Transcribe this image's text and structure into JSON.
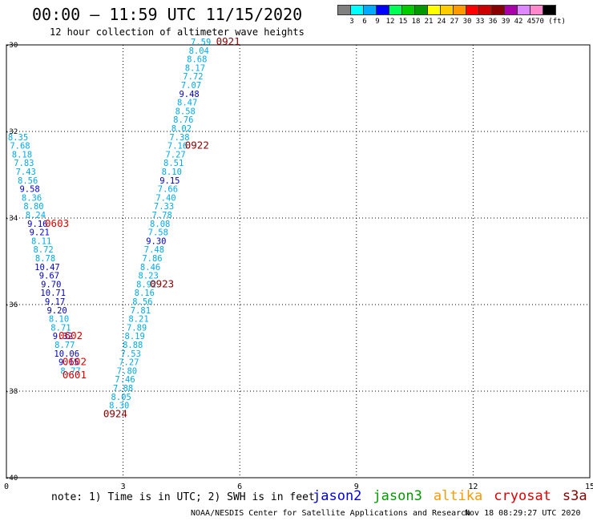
{
  "header": {
    "title": "00:00 – 11:59 UTC 11/15/2020",
    "subtitle": "12 hour collection of altimeter wave heights"
  },
  "legend": {
    "colors": [
      "#808080",
      "#00ffff",
      "#00aaff",
      "#0000ff",
      "#00ff55",
      "#00cc00",
      "#009900",
      "#ffff00",
      "#ffcc00",
      "#ff9900",
      "#ff0000",
      "#cc0000",
      "#880000",
      "#aa00aa",
      "#dd88ff",
      "#ff88cc",
      "#000000"
    ],
    "labels": [
      "3",
      "6",
      "9",
      "12",
      "15",
      "18",
      "21",
      "24",
      "27",
      "30",
      "33",
      "36",
      "39",
      "42",
      "45",
      "70 (ft)"
    ]
  },
  "footer": {
    "note": "note: 1) Time is in UTC; 2) SWH is in feet",
    "satellites": [
      {
        "name": "jason2",
        "color": "#0000dd"
      },
      {
        "name": "jason3",
        "color": "#009900"
      },
      {
        "name": "altika",
        "color": "#ff9900"
      },
      {
        "name": "cryosat",
        "color": "#dd0000"
      },
      {
        "name": "s3a",
        "color": "#880000"
      }
    ],
    "credit": "NOAA/NESDIS Center for Satellite Applications and Research",
    "timestamp": "Nov 18 08:29:27 UTC 2020"
  },
  "chart_data": {
    "type": "scatter",
    "xlim": [
      0,
      15
    ],
    "ylim": [
      -40,
      -30
    ],
    "xticks": [
      "0",
      "3",
      "6",
      "9",
      "12",
      "15"
    ],
    "yticks": [
      "-30",
      "-32",
      "-34",
      "-36",
      "-38",
      "-40"
    ],
    "grid": true,
    "points": [
      {
        "x": 5.0,
        "y": -30.0,
        "v": "7.59",
        "c": "#00aaee"
      },
      {
        "x": 4.95,
        "y": -30.2,
        "v": "8.04",
        "c": "#00aaee"
      },
      {
        "x": 4.9,
        "y": -30.4,
        "v": "8.68",
        "c": "#00aaee"
      },
      {
        "x": 4.85,
        "y": -30.6,
        "v": "8.17",
        "c": "#00aaee"
      },
      {
        "x": 4.8,
        "y": -30.8,
        "v": "7.72",
        "c": "#00aaee"
      },
      {
        "x": 4.75,
        "y": -31.0,
        "v": "7.07",
        "c": "#00aaee"
      },
      {
        "x": 4.7,
        "y": -31.2,
        "v": "9.48",
        "c": "#0000cc"
      },
      {
        "x": 4.65,
        "y": -31.4,
        "v": "8.47",
        "c": "#00aaee"
      },
      {
        "x": 4.6,
        "y": -31.6,
        "v": "8.58",
        "c": "#00aaee"
      },
      {
        "x": 4.55,
        "y": -31.8,
        "v": "8.76",
        "c": "#00aaee"
      },
      {
        "x": 4.5,
        "y": -32.0,
        "v": "8.02",
        "c": "#00aaee"
      },
      {
        "x": 4.45,
        "y": -32.2,
        "v": "7.38",
        "c": "#00aaee"
      },
      {
        "x": 4.4,
        "y": -32.4,
        "v": "7.16",
        "c": "#00aaee"
      },
      {
        "x": 4.35,
        "y": -32.6,
        "v": "7.27",
        "c": "#00aaee"
      },
      {
        "x": 4.3,
        "y": -32.8,
        "v": "8.51",
        "c": "#00aaee"
      },
      {
        "x": 4.25,
        "y": -33.0,
        "v": "8.10",
        "c": "#00aaee"
      },
      {
        "x": 4.2,
        "y": -33.2,
        "v": "9.15",
        "c": "#0000cc"
      },
      {
        "x": 4.15,
        "y": -33.4,
        "v": "7.66",
        "c": "#00aaee"
      },
      {
        "x": 4.1,
        "y": -33.6,
        "v": "7.40",
        "c": "#00aaee"
      },
      {
        "x": 4.05,
        "y": -33.8,
        "v": "7.33",
        "c": "#00aaee"
      },
      {
        "x": 4.0,
        "y": -34.0,
        "v": "7.78",
        "c": "#00aaee"
      },
      {
        "x": 3.95,
        "y": -34.2,
        "v": "8.08",
        "c": "#00aaee"
      },
      {
        "x": 3.9,
        "y": -34.4,
        "v": "7.58",
        "c": "#00aaee"
      },
      {
        "x": 3.85,
        "y": -34.6,
        "v": "9.30",
        "c": "#0000cc"
      },
      {
        "x": 3.8,
        "y": -34.8,
        "v": "7.48",
        "c": "#00aaee"
      },
      {
        "x": 3.75,
        "y": -35.0,
        "v": "7.86",
        "c": "#00aaee"
      },
      {
        "x": 3.7,
        "y": -35.2,
        "v": "8.46",
        "c": "#00aaee"
      },
      {
        "x": 3.65,
        "y": -35.4,
        "v": "8.23",
        "c": "#00aaee"
      },
      {
        "x": 3.6,
        "y": -35.6,
        "v": "8.92",
        "c": "#00aaee"
      },
      {
        "x": 3.55,
        "y": -35.8,
        "v": "8.16",
        "c": "#00aaee"
      },
      {
        "x": 3.5,
        "y": -36.0,
        "v": "8.56",
        "c": "#00aaee"
      },
      {
        "x": 3.45,
        "y": -36.2,
        "v": "7.81",
        "c": "#00aaee"
      },
      {
        "x": 3.4,
        "y": -36.4,
        "v": "8.21",
        "c": "#00aaee"
      },
      {
        "x": 3.35,
        "y": -36.6,
        "v": "7.89",
        "c": "#00aaee"
      },
      {
        "x": 3.3,
        "y": -36.8,
        "v": "8.19",
        "c": "#00aaee"
      },
      {
        "x": 3.25,
        "y": -37.0,
        "v": "8.88",
        "c": "#00aaee"
      },
      {
        "x": 3.2,
        "y": -37.2,
        "v": "7.53",
        "c": "#00aaee"
      },
      {
        "x": 3.15,
        "y": -37.4,
        "v": "7.27",
        "c": "#00aaee"
      },
      {
        "x": 3.1,
        "y": -37.6,
        "v": "7.80",
        "c": "#00aaee"
      },
      {
        "x": 3.05,
        "y": -37.8,
        "v": "7.46",
        "c": "#00aaee"
      },
      {
        "x": 3.0,
        "y": -38.0,
        "v": "7.88",
        "c": "#00aaee"
      },
      {
        "x": 2.95,
        "y": -38.2,
        "v": "8.05",
        "c": "#00aaee"
      },
      {
        "x": 2.9,
        "y": -38.4,
        "v": "8.30",
        "c": "#00aaee"
      },
      {
        "x": 0.3,
        "y": -32.2,
        "v": "8.35",
        "c": "#00aaee"
      },
      {
        "x": 0.35,
        "y": -32.4,
        "v": "7.68",
        "c": "#00aaee"
      },
      {
        "x": 0.4,
        "y": -32.6,
        "v": "8.18",
        "c": "#00aaee"
      },
      {
        "x": 0.45,
        "y": -32.8,
        "v": "7.83",
        "c": "#00aaee"
      },
      {
        "x": 0.5,
        "y": -33.0,
        "v": "7.43",
        "c": "#00aaee"
      },
      {
        "x": 0.55,
        "y": -33.2,
        "v": "8.56",
        "c": "#00aaee"
      },
      {
        "x": 0.6,
        "y": -33.4,
        "v": "9.58",
        "c": "#0000cc"
      },
      {
        "x": 0.65,
        "y": -33.6,
        "v": "8.36",
        "c": "#00aaee"
      },
      {
        "x": 0.7,
        "y": -33.8,
        "v": "8.80",
        "c": "#00aaee"
      },
      {
        "x": 0.75,
        "y": -34.0,
        "v": "8.24",
        "c": "#00aaee"
      },
      {
        "x": 0.8,
        "y": -34.2,
        "v": "9.16",
        "c": "#0000cc"
      },
      {
        "x": 0.85,
        "y": -34.4,
        "v": "9.21",
        "c": "#0000cc"
      },
      {
        "x": 0.9,
        "y": -34.6,
        "v": "8.11",
        "c": "#00aaee"
      },
      {
        "x": 0.95,
        "y": -34.8,
        "v": "8.72",
        "c": "#00aaee"
      },
      {
        "x": 1.0,
        "y": -35.0,
        "v": "8.78",
        "c": "#00aaee"
      },
      {
        "x": 1.05,
        "y": -35.2,
        "v": "10.47",
        "c": "#0000cc"
      },
      {
        "x": 1.1,
        "y": -35.4,
        "v": "9.67",
        "c": "#0000cc"
      },
      {
        "x": 1.15,
        "y": -35.6,
        "v": "9.70",
        "c": "#0000cc"
      },
      {
        "x": 1.2,
        "y": -35.8,
        "v": "10.71",
        "c": "#0000cc"
      },
      {
        "x": 1.25,
        "y": -36.0,
        "v": "9.17",
        "c": "#0000cc"
      },
      {
        "x": 1.3,
        "y": -36.2,
        "v": "9.20",
        "c": "#0000cc"
      },
      {
        "x": 1.35,
        "y": -36.4,
        "v": "8.10",
        "c": "#00aaee"
      },
      {
        "x": 1.4,
        "y": -36.6,
        "v": "8.71",
        "c": "#00aaee"
      },
      {
        "x": 1.45,
        "y": -36.8,
        "v": "9.32",
        "c": "#0000cc"
      },
      {
        "x": 1.5,
        "y": -37.0,
        "v": "8.77",
        "c": "#00aaee"
      },
      {
        "x": 1.55,
        "y": -37.2,
        "v": "10.06",
        "c": "#0000cc"
      },
      {
        "x": 1.6,
        "y": -37.4,
        "v": "9.15",
        "c": "#0000cc"
      },
      {
        "x": 1.65,
        "y": -37.6,
        "v": "8.77",
        "c": "#00aaee"
      }
    ],
    "passes": [
      {
        "label": "0921",
        "x": 5.7,
        "y": -30.0,
        "c": "#880000"
      },
      {
        "label": "0922",
        "x": 4.9,
        "y": -32.4,
        "c": "#880000"
      },
      {
        "label": "0923",
        "x": 4.0,
        "y": -35.6,
        "c": "#880000"
      },
      {
        "label": "0924",
        "x": 2.8,
        "y": -38.6,
        "c": "#880000"
      },
      {
        "label": "0603",
        "x": 1.3,
        "y": -34.2,
        "c": "#dd0000"
      },
      {
        "label": "0602",
        "x": 1.65,
        "y": -36.8,
        "c": "#dd0000"
      },
      {
        "label": "0602",
        "x": 1.75,
        "y": -37.4,
        "c": "#dd0000"
      },
      {
        "label": "0601",
        "x": 1.75,
        "y": -37.7,
        "c": "#dd0000"
      }
    ]
  }
}
